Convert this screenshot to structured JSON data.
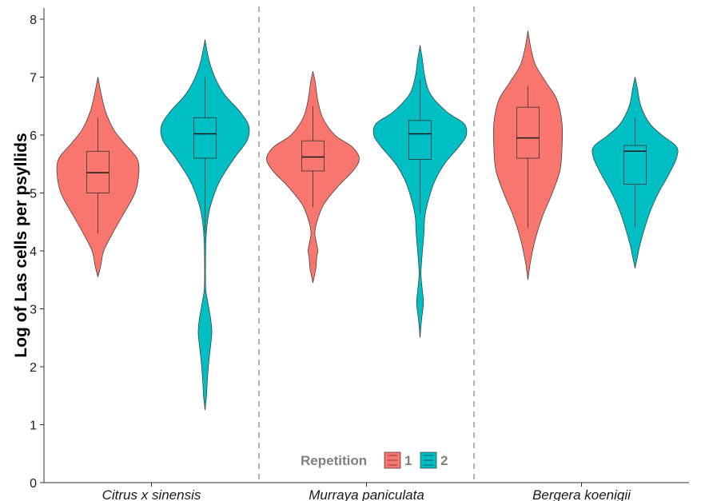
{
  "chart_data": {
    "type": "violin",
    "ylabel": "Log of Las cells per psyllids",
    "xlabel": "",
    "ylim": [
      0,
      8
    ],
    "yticks": [
      0,
      1,
      2,
      3,
      4,
      5,
      6,
      7,
      8
    ],
    "categories": [
      "Citrus x sinensis",
      "Murraya paniculata",
      "Bergera koenigii"
    ],
    "legend": {
      "title": "Repetition",
      "placement": "bottom-center",
      "entries": [
        "1",
        "2"
      ]
    },
    "grid": false,
    "separators": "dashed vertical lines between categories",
    "colors": {
      "1": "#F8766D",
      "2": "#00BFC4",
      "separator": "#b3b3b3"
    },
    "series": [
      {
        "name": "1",
        "groups": [
          {
            "category": "Citrus x sinensis",
            "box": {
              "min": 4.3,
              "q1": 5.0,
              "median": 5.35,
              "q3": 5.72,
              "max": 6.3
            },
            "density": [
              [
                3.55,
                0
              ],
              [
                3.75,
                0.06
              ],
              [
                4.0,
                0.12
              ],
              [
                4.3,
                0.3
              ],
              [
                4.6,
                0.5
              ],
              [
                5.0,
                0.76
              ],
              [
                5.35,
                0.84
              ],
              [
                5.6,
                0.8
              ],
              [
                5.85,
                0.55
              ],
              [
                6.1,
                0.32
              ],
              [
                6.4,
                0.16
              ],
              [
                6.7,
                0.07
              ],
              [
                7.0,
                0
              ]
            ]
          },
          {
            "category": "Murraya paniculata",
            "box": {
              "min": 4.75,
              "q1": 5.38,
              "median": 5.62,
              "q3": 5.9,
              "max": 6.5
            },
            "density": [
              [
                3.45,
                0
              ],
              [
                3.7,
                0.06
              ],
              [
                3.9,
                0.08
              ],
              [
                4.0,
                0.1
              ],
              [
                4.15,
                0.07
              ],
              [
                4.3,
                0.04
              ],
              [
                4.5,
                0.08
              ],
              [
                4.8,
                0.22
              ],
              [
                5.1,
                0.5
              ],
              [
                5.4,
                0.84
              ],
              [
                5.6,
                0.95
              ],
              [
                5.8,
                0.8
              ],
              [
                6.0,
                0.45
              ],
              [
                6.3,
                0.2
              ],
              [
                6.6,
                0.1
              ],
              [
                6.9,
                0.05
              ],
              [
                7.1,
                0
              ]
            ]
          },
          {
            "category": "Bergera koenigii",
            "box": {
              "min": 4.4,
              "q1": 5.6,
              "median": 5.95,
              "q3": 6.48,
              "max": 6.85
            },
            "density": [
              [
                3.5,
                0
              ],
              [
                3.8,
                0.05
              ],
              [
                4.2,
                0.15
              ],
              [
                4.6,
                0.3
              ],
              [
                5.0,
                0.5
              ],
              [
                5.4,
                0.66
              ],
              [
                5.8,
                0.7
              ],
              [
                6.2,
                0.7
              ],
              [
                6.6,
                0.6
              ],
              [
                6.9,
                0.38
              ],
              [
                7.2,
                0.16
              ],
              [
                7.5,
                0.06
              ],
              [
                7.8,
                0
              ]
            ]
          }
        ]
      },
      {
        "name": "2",
        "groups": [
          {
            "category": "Citrus x sinensis",
            "box": {
              "min": 4.3,
              "q1": 5.6,
              "median": 6.02,
              "q3": 6.3,
              "max": 7.0
            },
            "density": [
              [
                1.25,
                0
              ],
              [
                1.5,
                0.03
              ],
              [
                1.8,
                0.05
              ],
              [
                2.1,
                0.08
              ],
              [
                2.4,
                0.12
              ],
              [
                2.6,
                0.14
              ],
              [
                2.8,
                0.12
              ],
              [
                3.1,
                0.06
              ],
              [
                3.3,
                0.02
              ],
              [
                3.5,
                0.01
              ],
              [
                3.8,
                0.01
              ],
              [
                4.2,
                0.02
              ],
              [
                4.5,
                0.05
              ],
              [
                4.8,
                0.12
              ],
              [
                5.2,
                0.3
              ],
              [
                5.6,
                0.6
              ],
              [
                5.9,
                0.86
              ],
              [
                6.15,
                0.9
              ],
              [
                6.4,
                0.72
              ],
              [
                6.7,
                0.4
              ],
              [
                7.0,
                0.2
              ],
              [
                7.3,
                0.08
              ],
              [
                7.65,
                0
              ]
            ]
          },
          {
            "category": "Murraya paniculata",
            "box": {
              "min": 4.65,
              "q1": 5.58,
              "median": 6.02,
              "q3": 6.25,
              "max": 6.95
            },
            "density": [
              [
                2.5,
                0
              ],
              [
                2.8,
                0.03
              ],
              [
                3.1,
                0.07
              ],
              [
                3.3,
                0.05
              ],
              [
                3.6,
                0.02
              ],
              [
                3.9,
                0.04
              ],
              [
                4.3,
                0.08
              ],
              [
                4.6,
                0.1
              ],
              [
                4.9,
                0.18
              ],
              [
                5.2,
                0.3
              ],
              [
                5.5,
                0.5
              ],
              [
                5.8,
                0.8
              ],
              [
                6.0,
                0.95
              ],
              [
                6.2,
                0.9
              ],
              [
                6.4,
                0.55
              ],
              [
                6.7,
                0.22
              ],
              [
                7.0,
                0.1
              ],
              [
                7.3,
                0.05
              ],
              [
                7.55,
                0
              ]
            ]
          },
          {
            "category": "Bergera koenigii",
            "box": {
              "min": 4.4,
              "q1": 5.15,
              "median": 5.72,
              "q3": 5.82,
              "max": 6.3
            },
            "density": [
              [
                3.7,
                0
              ],
              [
                3.9,
                0.05
              ],
              [
                4.1,
                0.1
              ],
              [
                4.4,
                0.2
              ],
              [
                4.7,
                0.32
              ],
              [
                5.0,
                0.48
              ],
              [
                5.3,
                0.68
              ],
              [
                5.6,
                0.85
              ],
              [
                5.8,
                0.85
              ],
              [
                6.0,
                0.55
              ],
              [
                6.2,
                0.3
              ],
              [
                6.5,
                0.12
              ],
              [
                6.8,
                0.05
              ],
              [
                7.0,
                0
              ]
            ]
          }
        ]
      }
    ]
  }
}
